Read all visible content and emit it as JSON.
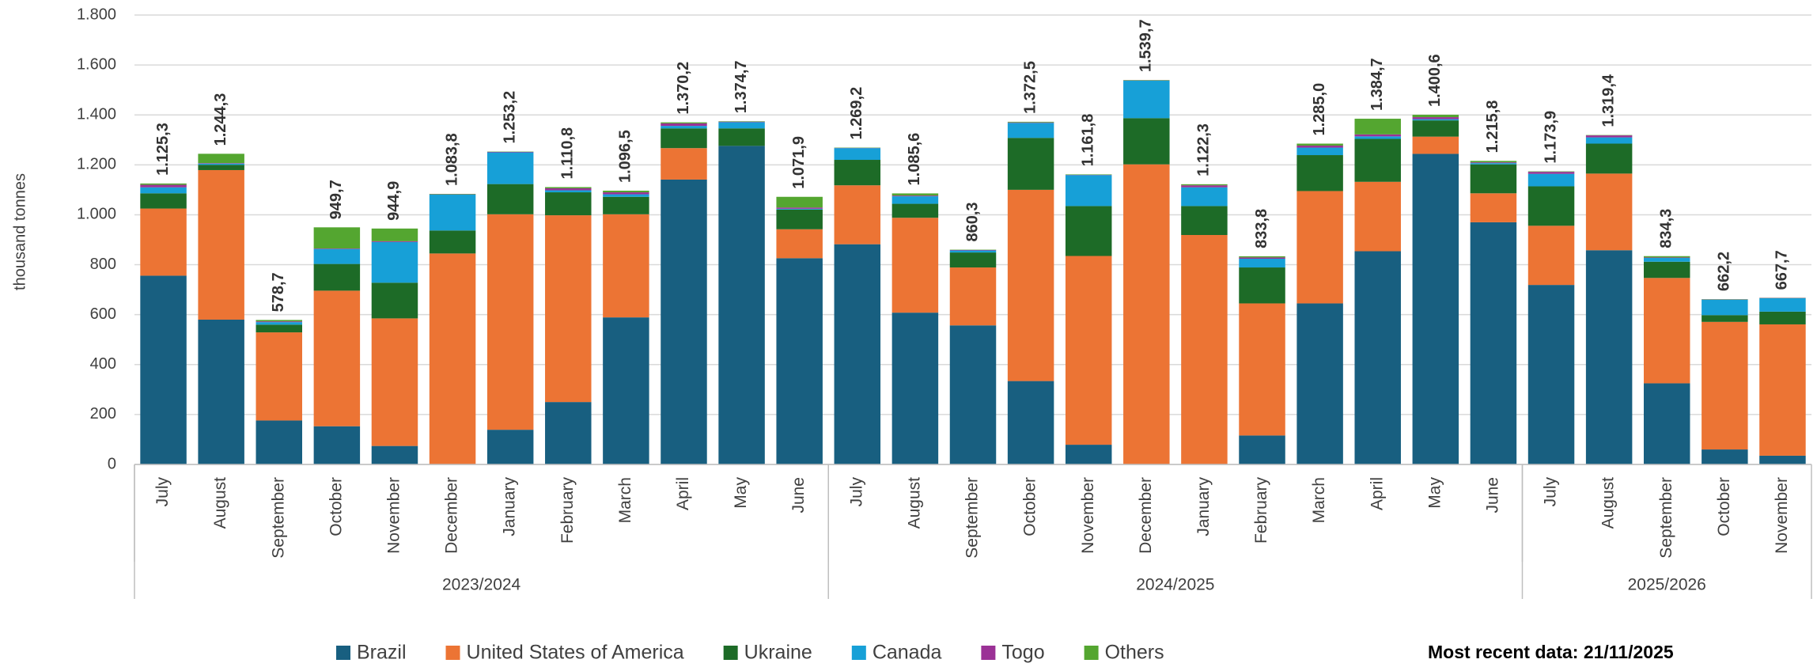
{
  "chart_data": {
    "type": "stacked_bar",
    "y_label": "thousand tonnes",
    "note": "Most recent data: 21/11/2025",
    "category_groups": [
      {
        "name": "2023/2024",
        "categories": [
          "July",
          "August",
          "September",
          "October",
          "November",
          "December",
          "January",
          "February",
          "March",
          "April",
          "May",
          "June"
        ]
      },
      {
        "name": "2024/2025",
        "categories": [
          "July",
          "August",
          "September",
          "October",
          "November",
          "December",
          "January",
          "February",
          "March",
          "April",
          "May",
          "June"
        ]
      },
      {
        "name": "2025/2026",
        "categories": [
          "July",
          "August",
          "September",
          "October",
          "November"
        ]
      }
    ],
    "series": [
      {
        "name": "Brazil",
        "color": "#185f80",
        "values": [
          756,
          580,
          176,
          153,
          74,
          0,
          139,
          250,
          589,
          1141,
          1276,
          826,
          882,
          608,
          557,
          334,
          79,
          0,
          0,
          116,
          645,
          854,
          1244,
          970,
          719,
          858,
          325,
          60,
          35
        ]
      },
      {
        "name": "United States of America",
        "color": "#ec7434",
        "values": [
          269,
          599,
          353,
          543,
          511,
          845,
          863,
          748,
          413,
          126,
          0,
          116,
          236,
          380,
          232,
          766,
          756,
          1202,
          919,
          529,
          450,
          278,
          69,
          116,
          237,
          307,
          422,
          511,
          526
        ]
      },
      {
        "name": "Ukraine",
        "color": "#1d6b27",
        "values": [
          61,
          21,
          31,
          107,
          143,
          92,
          121,
          92,
          70,
          79,
          70,
          79,
          102,
          56,
          60,
          208,
          200,
          185,
          116,
          144,
          144,
          172,
          65,
          116,
          158,
          120,
          65,
          27,
          51
        ]
      },
      {
        "name": "Canada",
        "color": "#17a0d7",
        "values": [
          24,
          5,
          10,
          60,
          163,
          144,
          127,
          8,
          10,
          10,
          25,
          3,
          47,
          30,
          8,
          60,
          124,
          150,
          75,
          35,
          30,
          10,
          5,
          5,
          50,
          25,
          15,
          62,
          54
        ]
      },
      {
        "name": "Togo",
        "color": "#9b3196",
        "values": [
          10,
          2,
          3,
          2,
          3,
          1,
          2,
          8,
          8,
          10,
          2,
          5,
          1,
          3,
          2,
          2,
          1,
          1,
          8,
          5,
          8,
          8,
          8,
          3,
          8,
          8,
          2,
          1,
          1
        ]
      },
      {
        "name": "Others",
        "color": "#54a630",
        "values": [
          5.3,
          37.3,
          5.7,
          84.7,
          50.9,
          1.8,
          1.2,
          4.8,
          6.5,
          4.2,
          1.7,
          42.9,
          1.2,
          8.6,
          1.3,
          2.5,
          1.8,
          1.7,
          4.3,
          4.8,
          8,
          62.7,
          9.6,
          5.8,
          1.9,
          1.4,
          5.3,
          1.2,
          0.7
        ]
      }
    ],
    "totals": [
      1125.3,
      1244.3,
      578.7,
      949.7,
      944.9,
      1083.8,
      1253.2,
      1110.8,
      1096.5,
      1370.2,
      1374.7,
      1071.9,
      1269.2,
      1085.6,
      860.3,
      1372.5,
      1161.8,
      1539.7,
      1122.3,
      833.8,
      1285.0,
      1384.7,
      1400.6,
      1215.8,
      1173.9,
      1319.4,
      834.3,
      662.2,
      667.7
    ],
    "total_labels": [
      "1.125,3",
      "1.244,3",
      "578,7",
      "949,7",
      "944,9",
      "1.083,8",
      "1.253,2",
      "1.110,8",
      "1.096,5",
      "1.370,2",
      "1.374,7",
      "1.071,9",
      "1.269,2",
      "1.085,6",
      "860,3",
      "1.372,5",
      "1.161,8",
      "1.539,7",
      "1.122,3",
      "833,8",
      "1.285,0",
      "1.384,7",
      "1.400,6",
      "1.215,8",
      "1.173,9",
      "1.319,4",
      "834,3",
      "662,2",
      "667,7"
    ],
    "ylim": [
      0,
      1800
    ],
    "yticks": [
      0,
      200,
      400,
      600,
      800,
      {
        "value": 1000,
        "label": "1.000"
      },
      {
        "value": 1200,
        "label": "1.200"
      },
      {
        "value": 1400,
        "label": "1.400"
      },
      {
        "value": 1600,
        "label": "1.600"
      },
      {
        "value": 1800,
        "label": "1.800"
      }
    ],
    "grid": true,
    "legend": "bottom"
  }
}
